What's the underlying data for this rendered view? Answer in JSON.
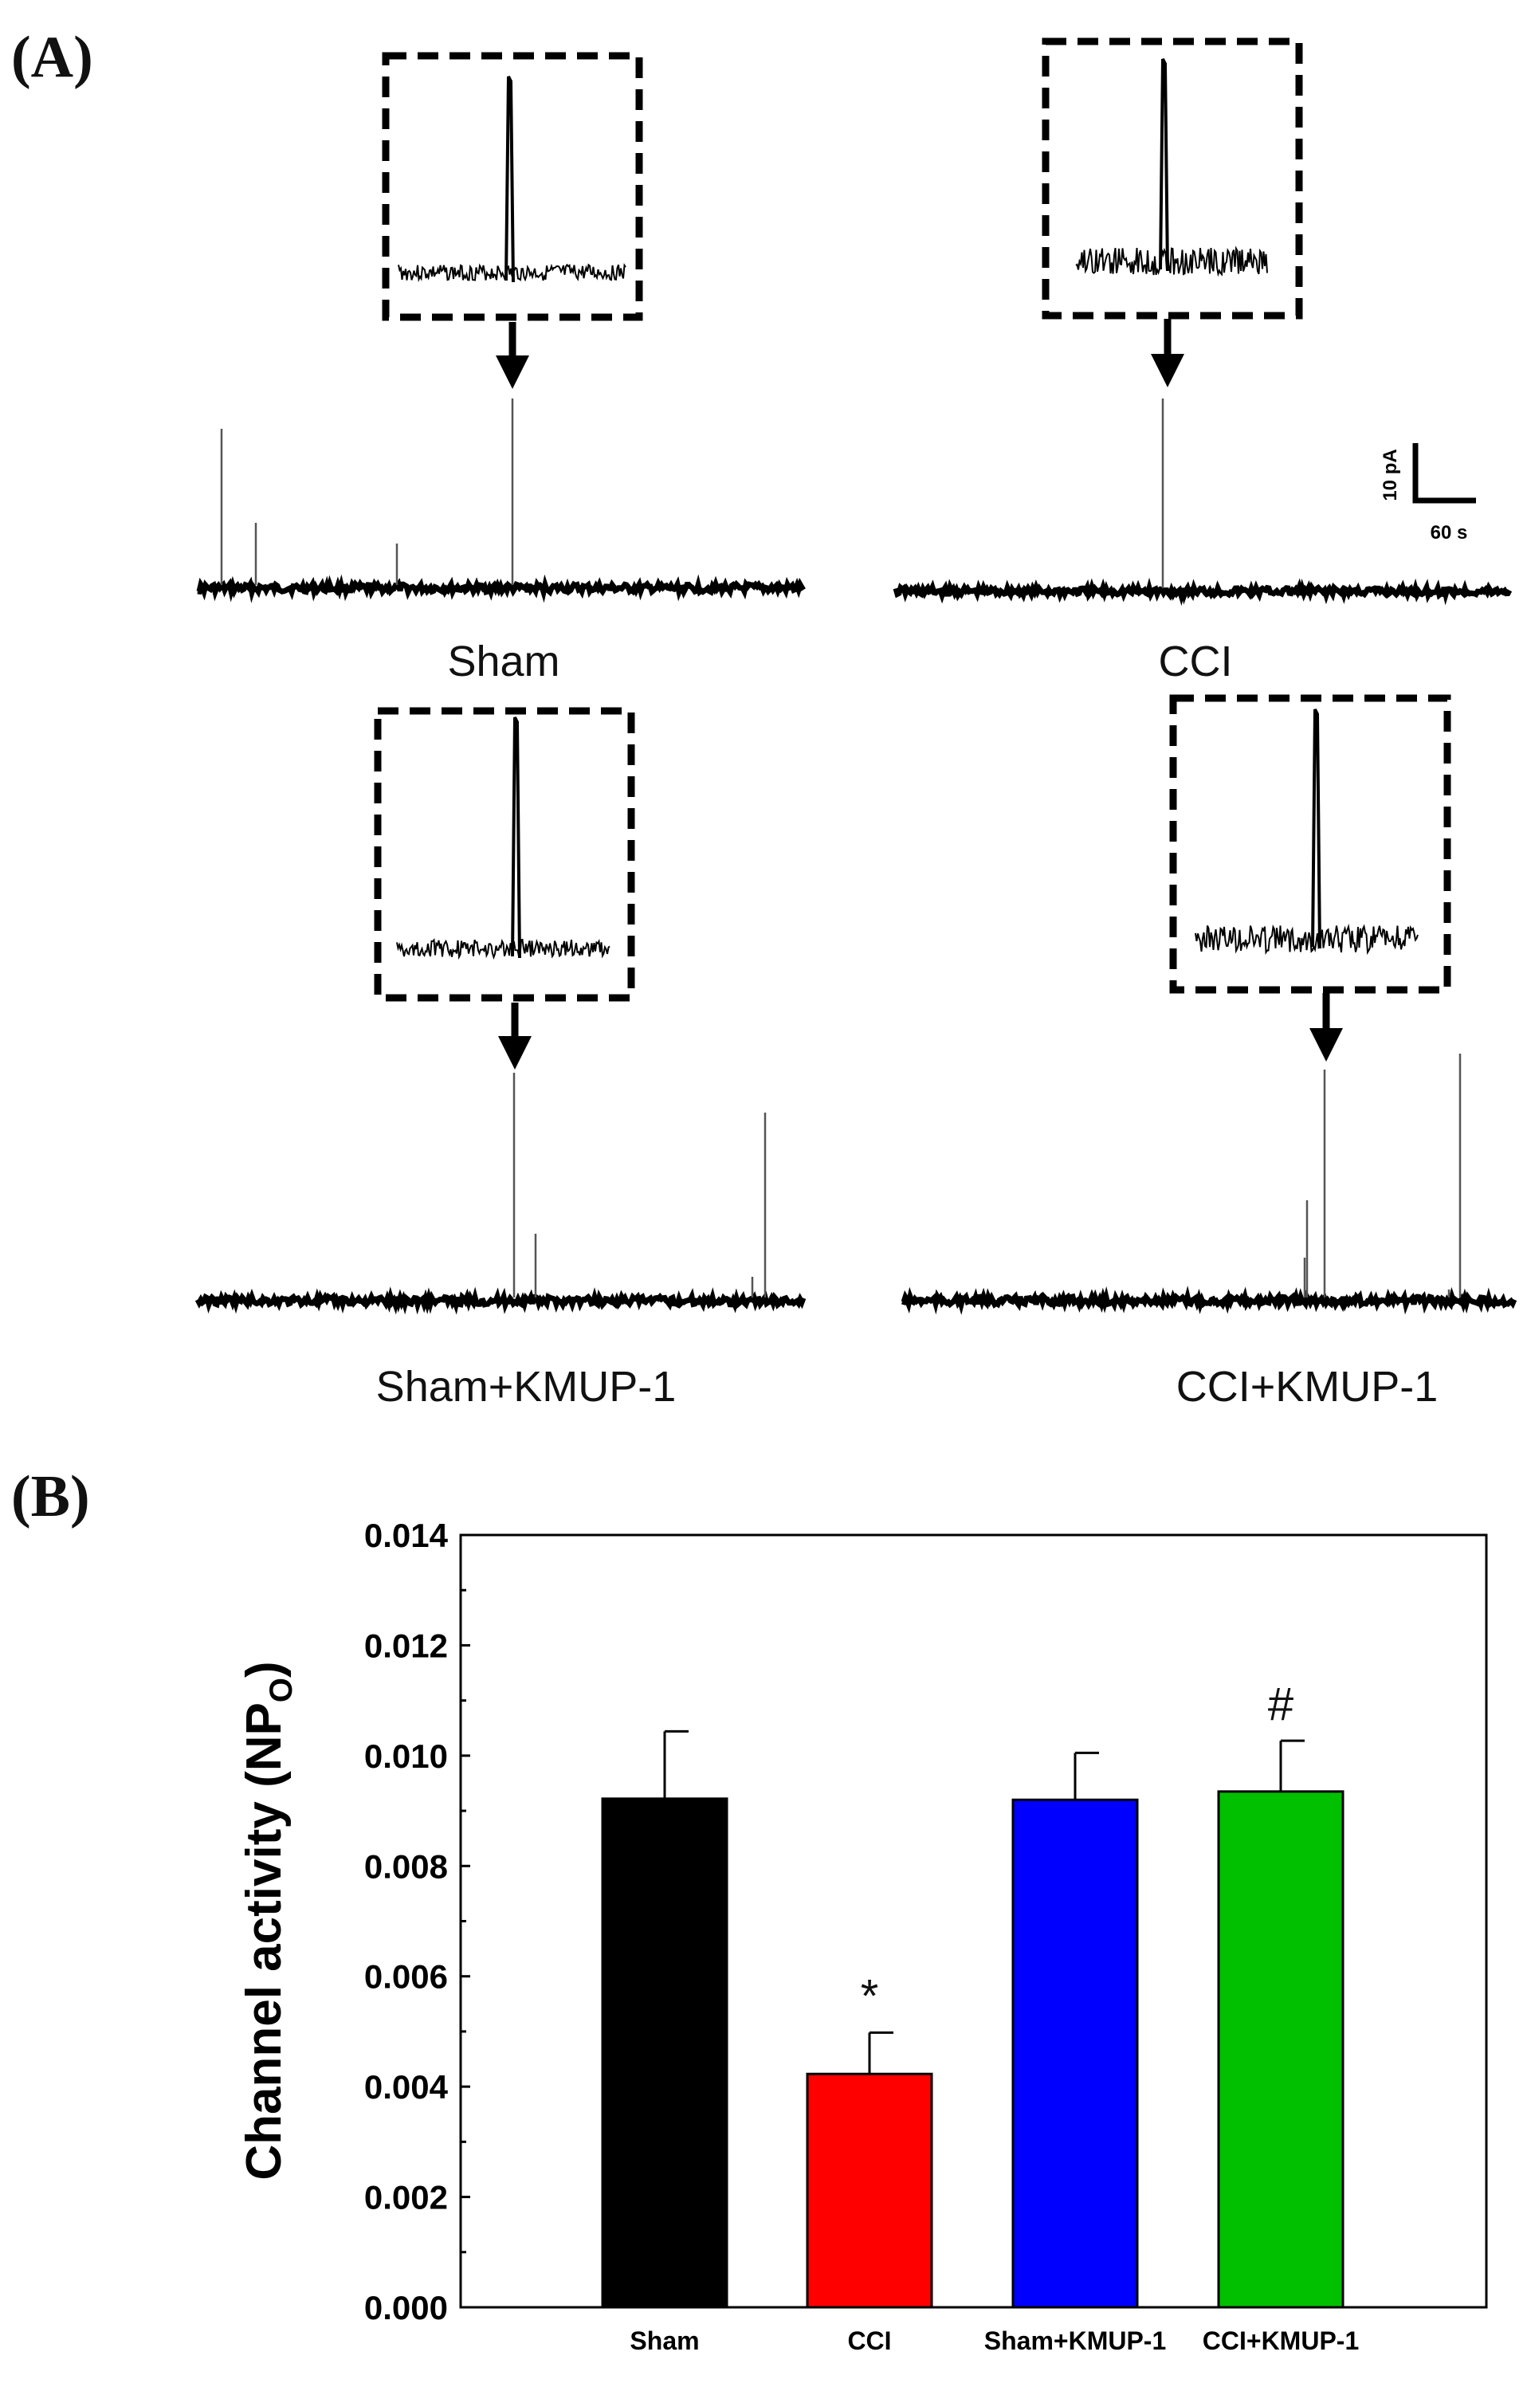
{
  "panel_a": {
    "label": "(A)",
    "scale_bar": {
      "current": "10 pA",
      "time": "60 s"
    },
    "traces": [
      {
        "name": "Sham",
        "spikes": [
          0.7,
          0.25,
          0.16,
          0.66
        ]
      },
      {
        "name": "CCI",
        "spikes": [
          0.68
        ]
      },
      {
        "name": "Sham+KMUP-1",
        "spikes": [
          0.75,
          0.24,
          0.62,
          0.06
        ]
      },
      {
        "name": "CCI+KMUP-1",
        "spikes": [
          0.15,
          0.37,
          0.78,
          0.85,
          0.02
        ]
      }
    ]
  },
  "panel_b": {
    "label": "(B)"
  },
  "chart_data": {
    "type": "bar",
    "title": "",
    "xlabel": "",
    "ylabel": "Channel activity (NP",
    "ylabel_subscript": "O",
    "ylabel_close": ")",
    "categories": [
      "Sham",
      "CCI",
      "Sham+KMUP-1",
      "CCI+KMUP-1"
    ],
    "values": [
      0.00922,
      0.00423,
      0.0092,
      0.00935
    ],
    "errors": [
      0.00122,
      0.00075,
      0.00085,
      0.00092
    ],
    "annotations": [
      "",
      "*",
      "",
      "#"
    ],
    "colors": [
      "#000000",
      "#ff0000",
      "#0000ff",
      "#00c000"
    ],
    "ylim": [
      0,
      0.014
    ],
    "yticks": [
      "0.000",
      "0.002",
      "0.004",
      "0.006",
      "0.008",
      "0.010",
      "0.012",
      "0.014"
    ],
    "grid": false
  }
}
